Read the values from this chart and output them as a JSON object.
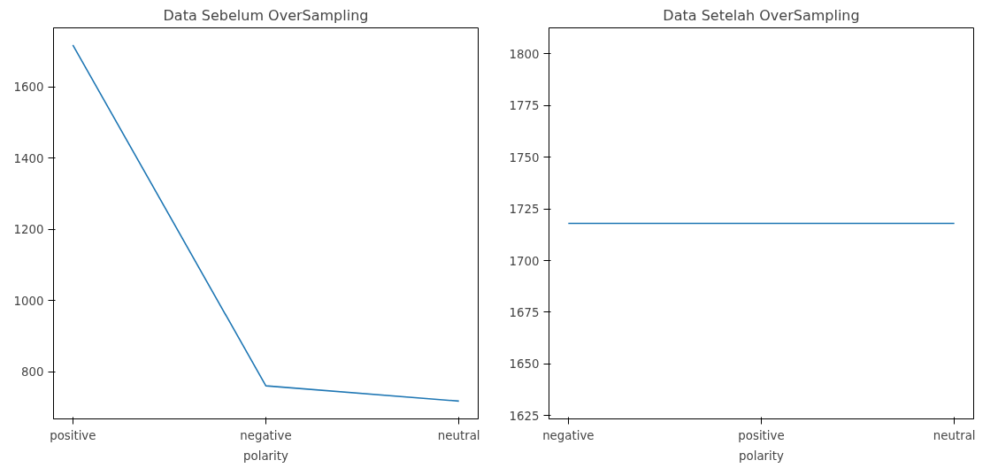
{
  "chart_data": [
    {
      "type": "line",
      "title": "Data Sebelum OverSampling",
      "xlabel": "polarity",
      "categories": [
        "positive",
        "negative",
        "neutral"
      ],
      "series": [
        {
          "color": "#1f77b4",
          "values": [
            1718,
            760,
            717
          ]
        }
      ],
      "ylim": [
        667,
        1766
      ],
      "yticks": [
        800,
        1000,
        1200,
        1400,
        1600
      ],
      "grid": false
    },
    {
      "type": "line",
      "title": "Data Setelah OverSampling",
      "xlabel": "polarity",
      "categories": [
        "negative",
        "positive",
        "neutral"
      ],
      "series": [
        {
          "color": "#1f77b4",
          "values": [
            1718,
            1718,
            1718
          ]
        }
      ],
      "ylim": [
        1623.4,
        1812.6
      ],
      "yticks": [
        1625,
        1650,
        1675,
        1700,
        1725,
        1750,
        1775,
        1800
      ],
      "grid": false
    }
  ]
}
